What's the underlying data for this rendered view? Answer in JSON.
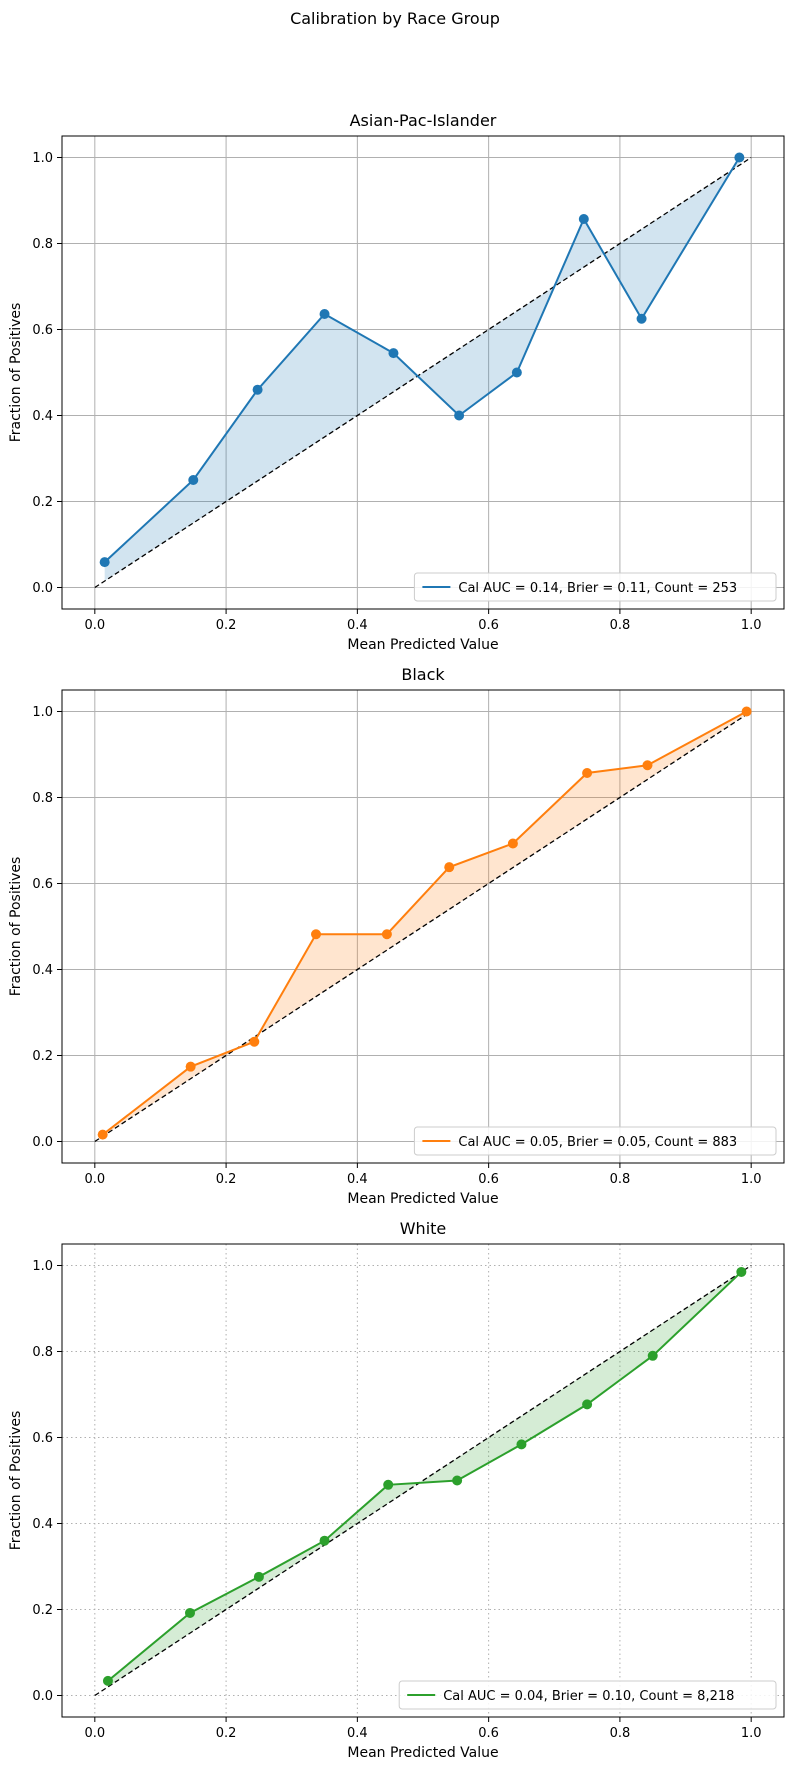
{
  "figure": {
    "suptitle": "Calibration by Race Group"
  },
  "chart_data": [
    {
      "type": "line",
      "title": "Asian-Pac-Islander",
      "xlabel": "Mean Predicted Value",
      "ylabel": "Fraction of Positives",
      "xlim": [
        -0.05,
        1.05
      ],
      "ylim": [
        -0.05,
        1.05
      ],
      "xticks": [
        "0.0",
        "0.2",
        "0.4",
        "0.6",
        "0.8",
        "1.0"
      ],
      "yticks": [
        "0.0",
        "0.2",
        "0.4",
        "0.6",
        "0.8",
        "1.0"
      ],
      "grid": "solid",
      "legend_position": "lower-right",
      "color": "#1f77b4",
      "fill_color": "#1f77b4",
      "reference_line": {
        "x": [
          0,
          1
        ],
        "y": [
          0,
          1
        ],
        "style": "dashed",
        "color": "#000000"
      },
      "series": [
        {
          "name": "Cal AUC = 0.14, Brier = 0.11, Count = 253",
          "x": [
            0.015,
            0.15,
            0.248,
            0.35,
            0.455,
            0.555,
            0.643,
            0.745,
            0.833,
            0.982
          ],
          "y": [
            0.059,
            0.25,
            0.46,
            0.636,
            0.545,
            0.4,
            0.5,
            0.857,
            0.625,
            1.0
          ]
        }
      ]
    },
    {
      "type": "line",
      "title": "Black",
      "xlabel": "Mean Predicted Value",
      "ylabel": "Fraction of Positives",
      "xlim": [
        -0.05,
        1.05
      ],
      "ylim": [
        -0.05,
        1.05
      ],
      "xticks": [
        "0.0",
        "0.2",
        "0.4",
        "0.6",
        "0.8",
        "1.0"
      ],
      "yticks": [
        "0.0",
        "0.2",
        "0.4",
        "0.6",
        "0.8",
        "1.0"
      ],
      "grid": "solid",
      "legend_position": "lower-right",
      "color": "#ff7f0e",
      "fill_color": "#ff7f0e",
      "reference_line": {
        "x": [
          0,
          1
        ],
        "y": [
          0,
          1
        ],
        "style": "dashed",
        "color": "#000000"
      },
      "series": [
        {
          "name": "Cal AUC = 0.05, Brier = 0.05, Count = 883",
          "x": [
            0.012,
            0.146,
            0.243,
            0.337,
            0.445,
            0.54,
            0.637,
            0.75,
            0.842,
            0.993
          ],
          "y": [
            0.016,
            0.174,
            0.232,
            0.482,
            0.482,
            0.638,
            0.693,
            0.857,
            0.875,
            1.0
          ]
        }
      ]
    },
    {
      "type": "line",
      "title": "White",
      "xlabel": "Mean Predicted Value",
      "ylabel": "Fraction of Positives",
      "xlim": [
        -0.05,
        1.05
      ],
      "ylim": [
        -0.05,
        1.05
      ],
      "xticks": [
        "0.0",
        "0.2",
        "0.4",
        "0.6",
        "0.8",
        "1.0"
      ],
      "yticks": [
        "0.0",
        "0.2",
        "0.4",
        "0.6",
        "0.8",
        "1.0"
      ],
      "grid": "dotted",
      "legend_position": "lower-right",
      "color": "#2ca02c",
      "fill_color": "#2ca02c",
      "reference_line": {
        "x": [
          0,
          1
        ],
        "y": [
          0,
          1
        ],
        "style": "dashed",
        "color": "#000000"
      },
      "series": [
        {
          "name": "Cal AUC = 0.04, Brier = 0.10, Count = 8,218",
          "x": [
            0.02,
            0.145,
            0.25,
            0.35,
            0.447,
            0.552,
            0.65,
            0.75,
            0.85,
            0.985
          ],
          "y": [
            0.034,
            0.192,
            0.276,
            0.36,
            0.49,
            0.5,
            0.584,
            0.677,
            0.79,
            0.985
          ]
        }
      ]
    }
  ]
}
